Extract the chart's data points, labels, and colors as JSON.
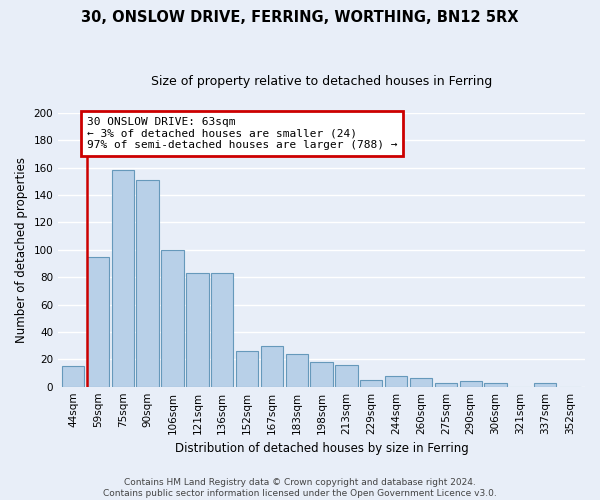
{
  "title": "30, ONSLOW DRIVE, FERRING, WORTHING, BN12 5RX",
  "subtitle": "Size of property relative to detached houses in Ferring",
  "xlabel": "Distribution of detached houses by size in Ferring",
  "ylabel": "Number of detached properties",
  "categories": [
    "44sqm",
    "59sqm",
    "75sqm",
    "90sqm",
    "106sqm",
    "121sqm",
    "136sqm",
    "152sqm",
    "167sqm",
    "183sqm",
    "198sqm",
    "213sqm",
    "229sqm",
    "244sqm",
    "260sqm",
    "275sqm",
    "290sqm",
    "306sqm",
    "321sqm",
    "337sqm",
    "352sqm"
  ],
  "values": [
    15,
    95,
    158,
    151,
    100,
    83,
    83,
    26,
    30,
    24,
    18,
    16,
    5,
    8,
    6,
    3,
    4,
    3,
    0,
    3,
    0
  ],
  "bar_color": "#b8d0e8",
  "bar_edge_color": "#6699bb",
  "red_line_color": "#cc0000",
  "annotation_text": "30 ONSLOW DRIVE: 63sqm\n← 3% of detached houses are smaller (24)\n97% of semi-detached houses are larger (788) →",
  "annotation_box_color": "#ffffff",
  "annotation_box_edge_color": "#cc0000",
  "ylim": [
    0,
    200
  ],
  "yticks": [
    0,
    20,
    40,
    60,
    80,
    100,
    120,
    140,
    160,
    180,
    200
  ],
  "footer_line1": "Contains HM Land Registry data © Crown copyright and database right 2024.",
  "footer_line2": "Contains public sector information licensed under the Open Government Licence v3.0.",
  "fig_background_color": "#e8eef8",
  "plot_background_color": "#e8eef8",
  "grid_color": "#ffffff",
  "title_fontsize": 10.5,
  "subtitle_fontsize": 9,
  "axis_label_fontsize": 8.5,
  "tick_fontsize": 7.5,
  "annotation_fontsize": 8,
  "footer_fontsize": 6.5
}
